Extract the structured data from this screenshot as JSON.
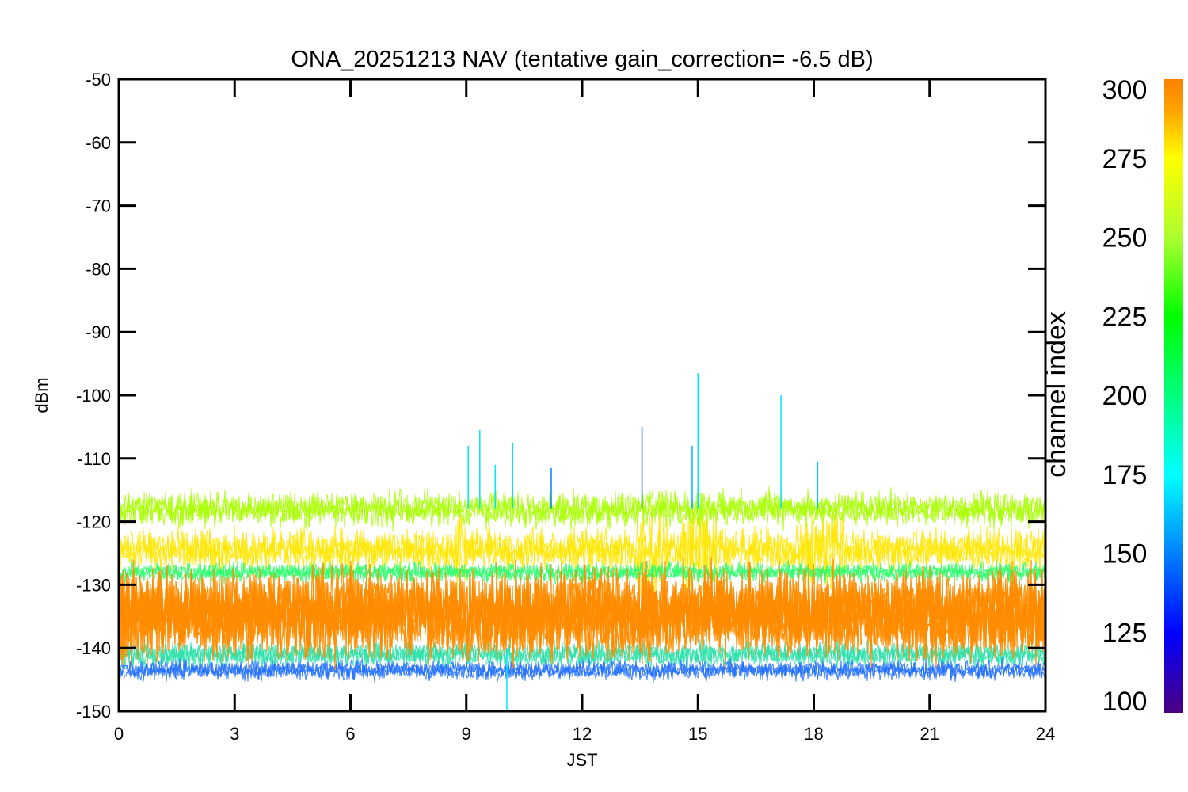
{
  "chart_data": {
    "type": "line",
    "title": "ONA_20251213 NAV (tentative gain_correction= -6.5 dB)",
    "xlabel": "JST",
    "ylabel": "dBm",
    "xlim": [
      0,
      24
    ],
    "ylim": [
      -150,
      -50
    ],
    "xticks": [
      "0",
      "3",
      "6",
      "9",
      "12",
      "15",
      "18",
      "21",
      "24"
    ],
    "xtick_values": [
      0,
      3,
      6,
      9,
      12,
      15,
      18,
      21,
      24
    ],
    "yticks": [
      "-50",
      "-60",
      "-70",
      "-80",
      "-90",
      "-100",
      "-110",
      "-120",
      "-130",
      "-140",
      "-150"
    ],
    "ytick_values": [
      -50,
      -60,
      -70,
      -80,
      -90,
      -100,
      -110,
      -120,
      -130,
      -140,
      -150
    ],
    "grid": false,
    "colorbar": {
      "label": "channel index",
      "range": [
        100,
        300
      ],
      "ticks": [
        "100",
        "125",
        "150",
        "175",
        "200",
        "225",
        "250",
        "275",
        "300"
      ],
      "tick_values": [
        100,
        125,
        150,
        175,
        200,
        225,
        250,
        275,
        300
      ],
      "colors": [
        "#4b0082",
        "#0000ff",
        "#00ffff",
        "#00ff7f",
        "#00ff00",
        "#adff2f",
        "#ffff00",
        "#ffa500",
        "#ff8000"
      ]
    },
    "bands": [
      {
        "channel": 300,
        "center": -134.5,
        "spread": 4.5,
        "color": "#ff8c00"
      },
      {
        "channel": 280,
        "center": -124.5,
        "spread": 2.2,
        "color": "#ffe600"
      },
      {
        "channel": 260,
        "center": -118.0,
        "spread": 1.8,
        "color": "#a8ff00"
      },
      {
        "channel": 230,
        "center": -128.0,
        "spread": 1.0,
        "color": "#2aff6a"
      },
      {
        "channel": 195,
        "center": -141.0,
        "spread": 1.3,
        "color": "#29e0a8"
      },
      {
        "channel": 150,
        "center": -143.5,
        "spread": 1.0,
        "color": "#1e6dff"
      }
    ],
    "spikes": [
      {
        "x": 9.05,
        "y": -108.0,
        "color": "#00e5ff"
      },
      {
        "x": 9.35,
        "y": -105.5,
        "color": "#00e5ff"
      },
      {
        "x": 9.75,
        "y": -111.0,
        "color": "#00e5ff"
      },
      {
        "x": 10.2,
        "y": -107.5,
        "color": "#00e5ff"
      },
      {
        "x": 11.2,
        "y": -111.5,
        "color": "#0080ff"
      },
      {
        "x": 13.55,
        "y": -105.0,
        "color": "#0050ff"
      },
      {
        "x": 14.85,
        "y": -108.0,
        "color": "#00b0ff"
      },
      {
        "x": 15.0,
        "y": -96.5,
        "color": "#00e5ff"
      },
      {
        "x": 17.15,
        "y": -100.0,
        "color": "#00e5ff"
      },
      {
        "x": 18.1,
        "y": -110.5,
        "color": "#00c8ff"
      },
      {
        "x": 10.05,
        "y": -150.0,
        "color": "#00e5ff"
      }
    ]
  }
}
